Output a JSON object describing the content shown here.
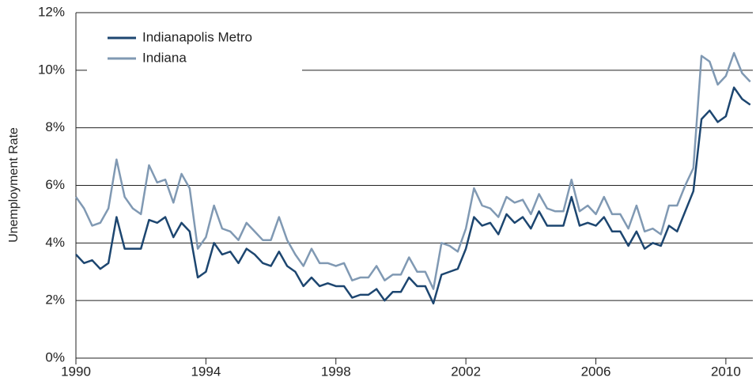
{
  "chart_data": {
    "type": "line",
    "y_label": "Unemployment Rate",
    "x": [
      1990,
      1990.25,
      1990.5,
      1990.75,
      1991,
      1991.25,
      1991.5,
      1991.75,
      1992,
      1992.25,
      1992.5,
      1992.75,
      1993,
      1993.25,
      1993.5,
      1993.75,
      1994,
      1994.25,
      1994.5,
      1994.75,
      1995,
      1995.25,
      1995.5,
      1995.75,
      1996,
      1996.25,
      1996.5,
      1996.75,
      1997,
      1997.25,
      1997.5,
      1997.75,
      1998,
      1998.25,
      1998.5,
      1998.75,
      1999,
      1999.25,
      1999.5,
      1999.75,
      2000,
      2000.25,
      2000.5,
      2000.75,
      2001,
      2001.25,
      2001.5,
      2001.75,
      2002,
      2002.25,
      2002.5,
      2002.75,
      2003,
      2003.25,
      2003.5,
      2003.75,
      2004,
      2004.25,
      2004.5,
      2004.75,
      2005,
      2005.25,
      2005.5,
      2005.75,
      2006,
      2006.25,
      2006.5,
      2006.75,
      2007,
      2007.25,
      2007.5,
      2007.75,
      2008,
      2008.25,
      2008.5,
      2008.75,
      2009,
      2009.25,
      2009.5,
      2009.75,
      2010,
      2010.25,
      2010.5,
      2010.75
    ],
    "series": [
      {
        "name": "Indianapolis Metro",
        "color": "#1d4670",
        "values": [
          3.6,
          3.3,
          3.4,
          3.1,
          3.3,
          4.9,
          3.8,
          3.8,
          3.8,
          4.8,
          4.7,
          4.9,
          4.2,
          4.7,
          4.4,
          2.8,
          3.0,
          4.0,
          3.6,
          3.7,
          3.3,
          3.8,
          3.6,
          3.3,
          3.2,
          3.7,
          3.2,
          3.0,
          2.5,
          2.8,
          2.5,
          2.6,
          2.5,
          2.5,
          2.1,
          2.2,
          2.2,
          2.4,
          2.0,
          2.3,
          2.3,
          2.8,
          2.5,
          2.5,
          1.9,
          2.9,
          3.0,
          3.1,
          3.8,
          4.9,
          4.6,
          4.7,
          4.3,
          5.0,
          4.7,
          4.9,
          4.5,
          5.1,
          4.6,
          4.6,
          4.6,
          5.6,
          4.6,
          4.7,
          4.6,
          4.9,
          4.4,
          4.4,
          3.9,
          4.4,
          3.8,
          4.0,
          3.9,
          4.6,
          4.4,
          5.1,
          5.8,
          8.3,
          8.6,
          8.2,
          8.4,
          9.4,
          9.0,
          8.8
        ]
      },
      {
        "name": "Indiana",
        "color": "#8099b3",
        "values": [
          5.6,
          5.2,
          4.6,
          4.7,
          5.2,
          6.9,
          5.6,
          5.2,
          5.0,
          6.7,
          6.1,
          6.2,
          5.4,
          6.4,
          5.9,
          3.8,
          4.2,
          5.3,
          4.5,
          4.4,
          4.1,
          4.7,
          4.4,
          4.1,
          4.1,
          4.9,
          4.1,
          3.6,
          3.2,
          3.8,
          3.3,
          3.3,
          3.2,
          3.3,
          2.7,
          2.8,
          2.8,
          3.2,
          2.7,
          2.9,
          2.9,
          3.5,
          3.0,
          3.0,
          2.4,
          4.0,
          3.9,
          3.7,
          4.5,
          5.9,
          5.3,
          5.2,
          4.9,
          5.6,
          5.4,
          5.5,
          5.0,
          5.7,
          5.2,
          5.1,
          5.1,
          6.2,
          5.1,
          5.3,
          5.0,
          5.6,
          5.0,
          5.0,
          4.5,
          5.3,
          4.4,
          4.5,
          4.3,
          5.3,
          5.3,
          6.0,
          6.6,
          10.5,
          10.3,
          9.5,
          9.8,
          10.6,
          9.9,
          9.6
        ]
      }
    ],
    "xlim": [
      1990,
      2010.83
    ],
    "xticks": [
      1990,
      1994,
      1998,
      2002,
      2006,
      2010
    ],
    "ylim": [
      0,
      12
    ],
    "yticks": [
      {
        "value": 0,
        "label": "0%"
      },
      {
        "value": 2,
        "label": "2%"
      },
      {
        "value": 4,
        "label": "4%"
      },
      {
        "value": 6,
        "label": "6%"
      },
      {
        "value": 8,
        "label": "8%"
      },
      {
        "value": 10,
        "label": "10%"
      },
      {
        "value": 12,
        "label": "12%"
      }
    ],
    "grid": true,
    "legend": "upper-left"
  }
}
